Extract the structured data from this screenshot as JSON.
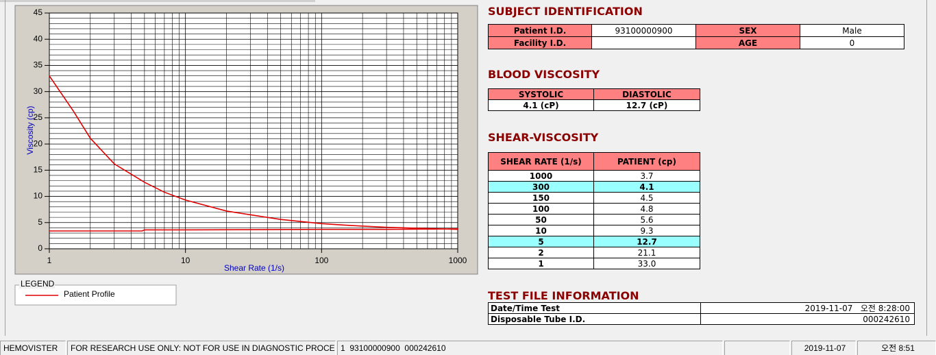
{
  "chart_data": {
    "type": "line",
    "x_label": "Shear Rate (1/s)",
    "y_label": "Viscosity (cp)",
    "x": [
      1,
      1.5,
      2,
      3,
      5,
      7,
      10,
      20,
      50,
      100,
      150,
      300,
      1000,
      1000,
      300,
      100,
      10,
      5,
      4.8,
      1
    ],
    "series": [
      {
        "name": "Patient Profile",
        "color": "#e00000",
        "values": [
          33.0,
          26.3,
          21.1,
          16.2,
          12.7,
          10.8,
          9.3,
          7.2,
          5.6,
          4.8,
          4.5,
          4.1,
          3.7,
          3.8,
          3.7,
          3.7,
          3.6,
          3.6,
          3.4,
          3.4
        ]
      }
    ],
    "xlim": [
      1,
      1000
    ],
    "xticks": [
      1,
      10,
      100,
      1000
    ],
    "xscale": "log",
    "ylim": [
      0,
      45
    ],
    "yticks": [
      0,
      5,
      10,
      15,
      20,
      25,
      30,
      35,
      40,
      45
    ],
    "grid": true,
    "legend_title": "LEGEND"
  },
  "subject_identification": {
    "title": "SUBJECT IDENTIFICATION",
    "patient_id_label": "Patient I.D.",
    "patient_id": "93100000900",
    "sex_label": "SEX",
    "sex": "Male",
    "facility_id_label": "Facility I.D.",
    "age_label": "AGE",
    "age": 0
  },
  "blood_viscosity": {
    "title": "BLOOD VISCOSITY",
    "headers": [
      "SYSTOLIC",
      "DIASTOLIC"
    ],
    "values": [
      "4.1 (cP)",
      "12.7 (cP)"
    ]
  },
  "shear_viscosity": {
    "title": "SHEAR-VISCOSITY",
    "headers": [
      "SHEAR RATE (1/s)",
      "PATIENT (cp)"
    ],
    "rows": [
      [
        1000,
        "3.7"
      ],
      [
        300,
        "4.1"
      ],
      [
        150,
        "4.5"
      ],
      [
        100,
        "4.8"
      ],
      [
        50,
        "5.6"
      ],
      [
        10,
        "9.3"
      ],
      [
        5,
        "12.7"
      ],
      [
        2,
        "21.1"
      ],
      [
        1,
        "33.0"
      ]
    ],
    "highlighted_rows": [
      1,
      6
    ]
  },
  "test_file": {
    "title": "TEST FILE INFORMATION",
    "rows": [
      [
        "Date/Time Test",
        "2019-11-07   오전 8:28:00"
      ],
      [
        "Disposable Tube I.D.",
        "000242610"
      ]
    ]
  },
  "status_bar": [
    "HEMOVISTER",
    "FOR RESEARCH USE ONLY: NOT FOR USE IN DIAGNOSTIC PROCEDURES",
    "1  93100000900  000242610",
    "2019-11-07",
    "오전 8:51"
  ]
}
